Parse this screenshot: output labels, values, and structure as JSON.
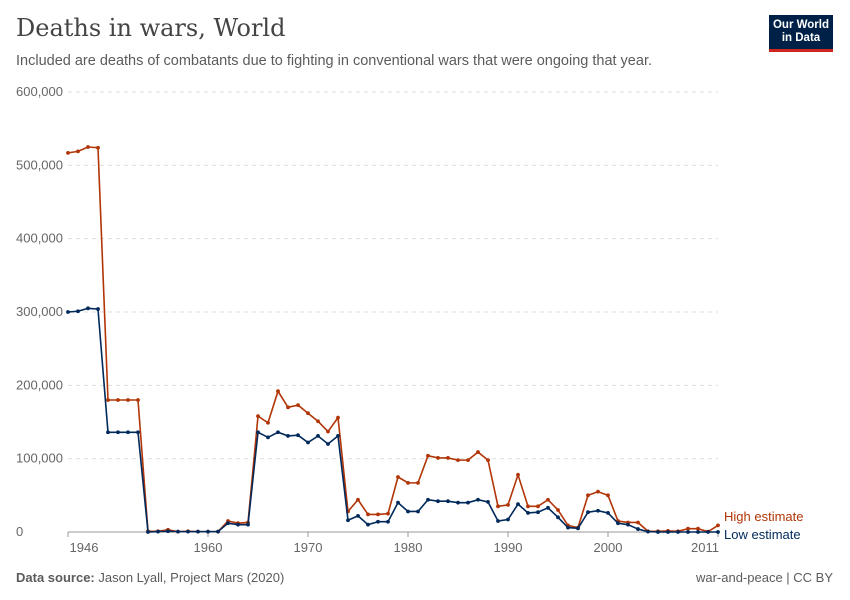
{
  "header": {
    "title": "Deaths in wars, World",
    "subtitle": "Included are deaths of combatants due to fighting in conventional wars that were ongoing that year.",
    "logo": "Our World in Data"
  },
  "footer": {
    "source_label": "Data source:",
    "source": "Jason Lyall, Project Mars (2020)",
    "license": "war-and-peace | CC BY"
  },
  "chart_data": {
    "type": "line",
    "title": "Deaths in wars, World",
    "xlim": [
      1946,
      2011
    ],
    "ylim": [
      0,
      600000
    ],
    "grid": "horizontal dashed",
    "x_ticks": [
      "1946",
      "1960",
      "1970",
      "1980",
      "1990",
      "2000",
      "2011"
    ],
    "y_ticks": [
      "0",
      "100,000",
      "200,000",
      "300,000",
      "400,000",
      "500,000",
      "600,000"
    ],
    "x": [
      1946,
      1947,
      1948,
      1949,
      1950,
      1951,
      1952,
      1953,
      1954,
      1955,
      1956,
      1957,
      1958,
      1959,
      1960,
      1961,
      1962,
      1963,
      1964,
      1965,
      1966,
      1967,
      1968,
      1969,
      1970,
      1971,
      1972,
      1973,
      1974,
      1975,
      1976,
      1977,
      1978,
      1979,
      1980,
      1981,
      1982,
      1983,
      1984,
      1985,
      1986,
      1987,
      1988,
      1989,
      1990,
      1991,
      1992,
      1993,
      1994,
      1995,
      1996,
      1997,
      1998,
      1999,
      2000,
      2001,
      2002,
      2003,
      2004,
      2005,
      2006,
      2007,
      2008,
      2009,
      2010,
      2011
    ],
    "series": [
      {
        "name": "High estimate",
        "color": "#b13507",
        "values": [
          517000,
          519000,
          525000,
          524000,
          180000,
          180000,
          180000,
          180000,
          1000,
          1000,
          3000,
          500,
          1000,
          500,
          500,
          500,
          15000,
          12000,
          13000,
          158000,
          149000,
          192000,
          170000,
          173000,
          162000,
          151000,
          137000,
          156000,
          28000,
          44000,
          24000,
          24000,
          25000,
          75000,
          67000,
          67000,
          104000,
          101000,
          101000,
          98000,
          98000,
          109000,
          98000,
          35000,
          37000,
          78000,
          35000,
          35000,
          44000,
          30000,
          9000,
          6000,
          50000,
          55000,
          50000,
          15000,
          13000,
          13000,
          1000,
          1000,
          1500,
          1000,
          4500,
          4500,
          500,
          9000
        ]
      },
      {
        "name": "Low estimate",
        "color": "#00295b",
        "values": [
          300000,
          301000,
          305000,
          304000,
          136000,
          136000,
          136000,
          136000,
          0,
          500,
          1000,
          500,
          500,
          500,
          500,
          500,
          12000,
          10000,
          10000,
          136000,
          129000,
          136000,
          131000,
          132000,
          122000,
          131000,
          120000,
          131000,
          16000,
          22000,
          10000,
          14000,
          14000,
          40000,
          28000,
          28000,
          44000,
          42000,
          42000,
          40000,
          40000,
          44000,
          41000,
          15000,
          17000,
          38000,
          26000,
          27000,
          33000,
          20000,
          6000,
          5000,
          27000,
          29000,
          26000,
          12000,
          10000,
          4000,
          500,
          0,
          0,
          0,
          0,
          0,
          0,
          0
        ]
      }
    ],
    "legend": "right, end of lines"
  }
}
